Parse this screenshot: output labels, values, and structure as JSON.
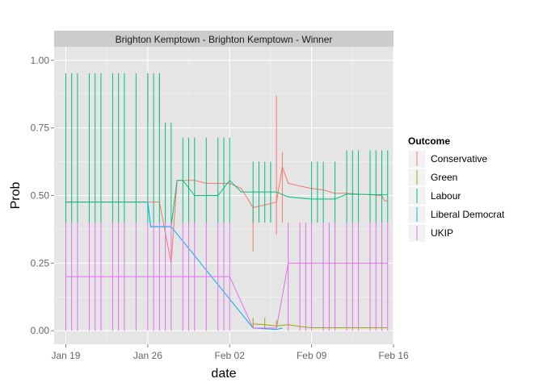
{
  "chart_data": {
    "type": "line",
    "title": "Brighton Kemptown - Brighton Kemptown - Winner",
    "xlabel": "date",
    "ylabel": "Prob",
    "x_range": [
      "2015-01-18",
      "2015-02-16"
    ],
    "ylim": [
      -0.05,
      1.05
    ],
    "x_ticks": [
      {
        "date": "2015-01-19",
        "label": "Jan 19"
      },
      {
        "date": "2015-01-26",
        "label": "Jan 26"
      },
      {
        "date": "2015-02-02",
        "label": "Feb 02"
      },
      {
        "date": "2015-02-09",
        "label": "Feb 09"
      },
      {
        "date": "2015-02-16",
        "label": "Feb 16"
      }
    ],
    "y_ticks": [
      {
        "value": 0.0,
        "label": "0.00"
      },
      {
        "value": 0.25,
        "label": "0.25"
      },
      {
        "value": 0.5,
        "label": "0.50"
      },
      {
        "value": 0.75,
        "label": "0.75"
      },
      {
        "value": 1.0,
        "label": "1.00"
      }
    ],
    "grid": true,
    "legend_title": "Outcome",
    "legend_position": "right",
    "series": [
      {
        "name": "Conservative",
        "color": "#F8766D",
        "points": [
          [
            "2015-01-19",
            0.476
          ],
          [
            "2015-01-20",
            0.476
          ],
          [
            "2015-01-22",
            0.476
          ],
          [
            "2015-01-24",
            0.476
          ],
          [
            "2015-01-26",
            0.476
          ],
          [
            "2015-01-27",
            0.476
          ],
          [
            "2015-01-28",
            0.25
          ],
          [
            "2015-01-28 12:00",
            0.556
          ],
          [
            "2015-01-29",
            0.556
          ],
          [
            "2015-01-30",
            0.556
          ],
          [
            "2015-01-31",
            0.545
          ],
          [
            "2015-02-01",
            0.545
          ],
          [
            "2015-02-02",
            0.545
          ],
          [
            "2015-02-03",
            0.526
          ],
          [
            "2015-02-04",
            0.455
          ],
          [
            "2015-02-05",
            0.465
          ],
          [
            "2015-02-06",
            0.476
          ],
          [
            "2015-02-06 12:00",
            0.606
          ],
          [
            "2015-02-07",
            0.545
          ],
          [
            "2015-02-08",
            0.535
          ],
          [
            "2015-02-09",
            0.526
          ],
          [
            "2015-02-10",
            0.521
          ],
          [
            "2015-02-11",
            0.508
          ],
          [
            "2015-02-12",
            0.508
          ],
          [
            "2015-02-13",
            0.505
          ],
          [
            "2015-02-14",
            0.502
          ],
          [
            "2015-02-15",
            0.5
          ],
          [
            "2015-02-15 06:00",
            0.48
          ],
          [
            "2015-02-15 12:00",
            0.48
          ]
        ],
        "spikes": [
          {
            "date": "2015-01-27",
            "low": 0.77,
            "high": 0.952
          },
          {
            "date": "2015-01-26",
            "low": 0.77,
            "high": 0.952
          },
          {
            "date": "2015-02-04",
            "low": 0.294,
            "high": 0.455
          },
          {
            "date": "2015-02-06",
            "low": 0.355,
            "high": 0.87
          },
          {
            "date": "2015-02-06 12:00",
            "low": 0.4,
            "high": 0.66
          },
          {
            "date": "2015-02-15",
            "low": 0.48,
            "high": 0.6
          }
        ]
      },
      {
        "name": "Green",
        "color": "#A3A500",
        "points": [
          [
            "2015-02-04",
            0.025
          ],
          [
            "2015-02-05",
            0.022
          ],
          [
            "2015-02-06",
            0.018
          ],
          [
            "2015-02-07",
            0.022
          ],
          [
            "2015-02-08",
            0.016
          ],
          [
            "2015-02-09",
            0.011
          ],
          [
            "2015-02-12",
            0.011
          ],
          [
            "2015-02-15 12:00",
            0.011
          ]
        ],
        "spikes": [
          {
            "date": "2015-02-04",
            "low": 0.01,
            "high": 0.048
          },
          {
            "date": "2015-02-05",
            "low": 0.01,
            "high": 0.048
          },
          {
            "date": "2015-02-06",
            "low": 0.01,
            "high": 0.04
          }
        ]
      },
      {
        "name": "Labour",
        "color": "#00BF7D",
        "points": [
          [
            "2015-01-19",
            0.476
          ],
          [
            "2015-01-26",
            0.476
          ],
          [
            "2015-01-26 06:00",
            0.385
          ],
          [
            "2015-01-28",
            0.385
          ],
          [
            "2015-01-28 12:00",
            0.556
          ],
          [
            "2015-01-29",
            0.556
          ],
          [
            "2015-01-30",
            0.5
          ],
          [
            "2015-02-01",
            0.5
          ],
          [
            "2015-02-02",
            0.556
          ],
          [
            "2015-02-03",
            0.513
          ],
          [
            "2015-02-05",
            0.513
          ],
          [
            "2015-02-06",
            0.513
          ],
          [
            "2015-02-07",
            0.495
          ],
          [
            "2015-02-09",
            0.487
          ],
          [
            "2015-02-11",
            0.487
          ],
          [
            "2015-02-12",
            0.505
          ],
          [
            "2015-02-15 12:00",
            0.502
          ]
        ],
        "spikes_x": [
          "2015-01-19",
          "2015-01-19 12:00",
          "2015-01-20",
          "2015-01-21",
          "2015-01-21 12:00",
          "2015-01-22",
          "2015-01-23",
          "2015-01-23 12:00",
          "2015-01-24",
          "2015-01-25",
          "2015-01-26",
          "2015-01-26 12:00",
          "2015-01-27",
          "2015-01-27 12:00",
          "2015-01-28",
          "2015-01-29",
          "2015-01-29 12:00",
          "2015-01-30",
          "2015-01-31",
          "2015-02-01",
          "2015-02-01 12:00",
          "2015-02-02",
          "2015-02-04",
          "2015-02-04 12:00",
          "2015-02-05",
          "2015-02-05 12:00",
          "2015-02-09",
          "2015-02-09 12:00",
          "2015-02-10",
          "2015-02-11",
          "2015-02-12",
          "2015-02-12 12:00",
          "2015-02-13",
          "2015-02-14",
          "2015-02-14 12:00",
          "2015-02-15",
          "2015-02-15 12:00"
        ],
        "spike_low": 0.4,
        "spike_high_values": [
          0.952,
          0.952,
          0.952,
          0.952,
          0.952,
          0.952,
          0.952,
          0.952,
          0.952,
          0.952,
          0.952,
          0.952,
          0.952,
          0.769,
          0.769,
          0.714,
          0.714,
          0.714,
          0.714,
          0.714,
          0.714,
          0.714,
          0.625,
          0.625,
          0.625,
          0.625,
          0.625,
          0.625,
          0.625,
          0.625,
          0.667,
          0.667,
          0.667,
          0.667,
          0.667,
          0.667,
          0.667
        ]
      },
      {
        "name": "Liberal Democrat",
        "color": "#00B0F6",
        "points": [
          [
            "2015-01-26",
            0.476
          ],
          [
            "2015-01-26 06:00",
            0.385
          ],
          [
            "2015-01-28",
            0.385
          ],
          [
            "2015-02-04",
            0.01
          ],
          [
            "2015-02-06",
            0.005
          ],
          [
            "2015-02-06 12:00",
            0.01
          ]
        ],
        "spikes": []
      },
      {
        "name": "UKIP",
        "color": "#E76BF3",
        "points": [
          [
            "2015-01-19",
            0.2
          ],
          [
            "2015-02-02",
            0.2
          ],
          [
            "2015-02-04",
            0.01
          ],
          [
            "2015-02-05",
            0.01
          ],
          [
            "2015-02-06",
            0.01
          ],
          [
            "2015-02-07",
            0.25
          ],
          [
            "2015-02-15 12:00",
            0.25
          ]
        ],
        "spikes_x": [
          "2015-01-19",
          "2015-01-19 12:00",
          "2015-01-20",
          "2015-01-21",
          "2015-01-21 12:00",
          "2015-01-22",
          "2015-01-23",
          "2015-01-23 12:00",
          "2015-01-24",
          "2015-01-25",
          "2015-01-26",
          "2015-01-26 12:00",
          "2015-01-27",
          "2015-01-27 12:00",
          "2015-01-28",
          "2015-01-29",
          "2015-01-29 12:00",
          "2015-01-30",
          "2015-01-31",
          "2015-02-01",
          "2015-02-01 12:00",
          "2015-02-02",
          "2015-02-07",
          "2015-02-08",
          "2015-02-08 12:00",
          "2015-02-09",
          "2015-02-10",
          "2015-02-10 12:00",
          "2015-02-11",
          "2015-02-12",
          "2015-02-12 12:00",
          "2015-02-13",
          "2015-02-14",
          "2015-02-14 12:00",
          "2015-02-15",
          "2015-02-15 12:00"
        ],
        "spike_low": 0.0,
        "spike_high": 0.4
      }
    ]
  }
}
